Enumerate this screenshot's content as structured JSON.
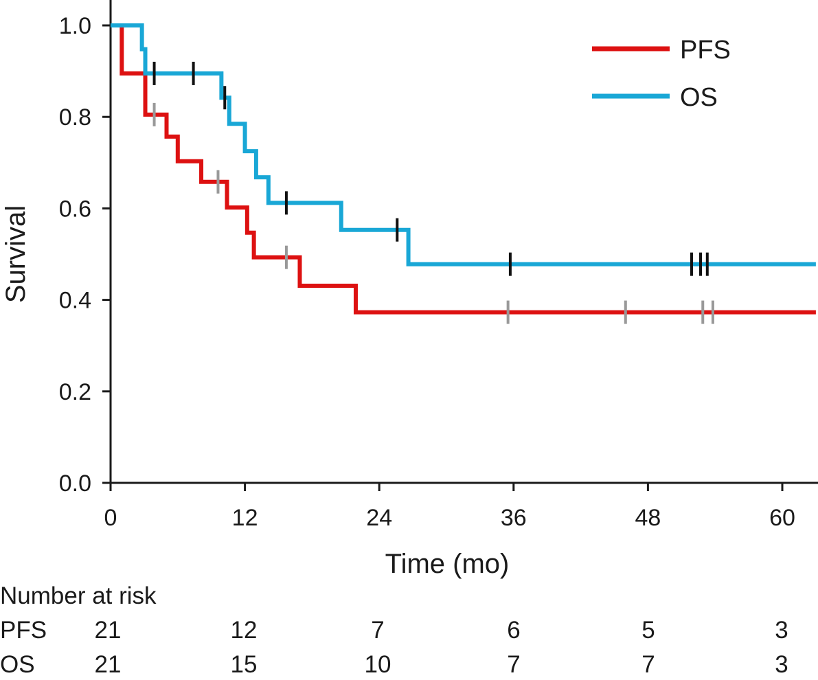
{
  "chart_data": {
    "type": "line",
    "step": true,
    "xlabel": "Time (mo)",
    "ylabel": "Survival",
    "xlim": [
      0,
      63
    ],
    "ylim": [
      0,
      1.0
    ],
    "xticks": [
      "0",
      "12",
      "24",
      "36",
      "48",
      "60"
    ],
    "yticks": [
      "0.0",
      "0.2",
      "0.4",
      "0.6",
      "0.8",
      "1.0"
    ],
    "legend": {
      "placement": "top-right"
    },
    "series": [
      {
        "name": "PFS",
        "color": "#dd1111",
        "censor_color": "#999999",
        "steps": [
          [
            0,
            1.0
          ],
          [
            1.0,
            0.895
          ],
          [
            3.1,
            0.805
          ],
          [
            5.0,
            0.757
          ],
          [
            6.0,
            0.703
          ],
          [
            8.1,
            0.658
          ],
          [
            10.4,
            0.602
          ],
          [
            12.2,
            0.547
          ],
          [
            12.8,
            0.493
          ],
          [
            16.9,
            0.431
          ],
          [
            21.9,
            0.373
          ],
          [
            63,
            0.373
          ]
        ],
        "censors": [
          [
            3.9,
            0.805
          ],
          [
            9.6,
            0.658
          ],
          [
            15.7,
            0.493
          ],
          [
            35.5,
            0.373
          ],
          [
            46.0,
            0.373
          ],
          [
            52.9,
            0.373
          ],
          [
            53.8,
            0.373
          ]
        ]
      },
      {
        "name": "OS",
        "color": "#19a7d6",
        "censor_color": "#111111",
        "steps": [
          [
            0,
            1.0
          ],
          [
            2.8,
            0.948
          ],
          [
            3.1,
            0.895
          ],
          [
            9.9,
            0.842
          ],
          [
            10.6,
            0.785
          ],
          [
            12.0,
            0.725
          ],
          [
            13.0,
            0.668
          ],
          [
            14.1,
            0.612
          ],
          [
            20.6,
            0.553
          ],
          [
            26.6,
            0.478
          ],
          [
            63,
            0.478
          ]
        ],
        "censors": [
          [
            3.9,
            0.895
          ],
          [
            7.4,
            0.895
          ],
          [
            10.2,
            0.842
          ],
          [
            15.7,
            0.612
          ],
          [
            25.6,
            0.553
          ],
          [
            35.7,
            0.478
          ],
          [
            51.9,
            0.478
          ],
          [
            52.7,
            0.478
          ],
          [
            53.3,
            0.478
          ]
        ]
      }
    ]
  },
  "risk_table": {
    "title": "Number at risk",
    "rows": [
      {
        "label": "PFS",
        "values": [
          "21",
          "12",
          "7",
          "6",
          "5",
          "3"
        ]
      },
      {
        "label": "OS",
        "values": [
          "21",
          "15",
          "10",
          "7",
          "7",
          "3"
        ]
      }
    ]
  }
}
